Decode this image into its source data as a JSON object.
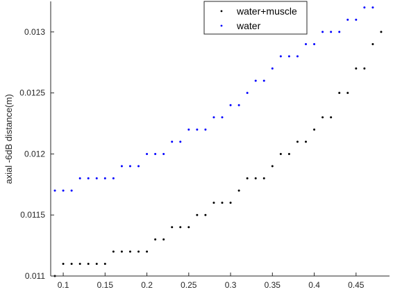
{
  "chart_data": {
    "type": "scatter",
    "title": "",
    "xlabel": "",
    "ylabel": "axial -6dB distance(m)",
    "xlim": [
      0.085,
      0.49
    ],
    "ylim": [
      0.011,
      0.01325
    ],
    "grid": false,
    "legend_position": "top-right",
    "xticks": [
      0.1,
      0.15,
      0.2,
      0.25,
      0.3,
      0.35,
      0.4,
      0.45
    ],
    "xtick_labels": [
      "0.1",
      "0.15",
      "0.2",
      "0.25",
      "0.3",
      "0.35",
      "0.4",
      "0.45"
    ],
    "yticks": [
      0.011,
      0.0115,
      0.012,
      0.0125,
      0.013
    ],
    "ytick_labels": [
      "0.011",
      "0.0115",
      "0.012",
      "0.0125",
      "0.013"
    ],
    "x": [
      0.09,
      0.1,
      0.11,
      0.12,
      0.13,
      0.14,
      0.15,
      0.16,
      0.17,
      0.18,
      0.19,
      0.2,
      0.21,
      0.22,
      0.23,
      0.24,
      0.25,
      0.26,
      0.27,
      0.28,
      0.29,
      0.3,
      0.31,
      0.32,
      0.33,
      0.34,
      0.35,
      0.36,
      0.37,
      0.38,
      0.39,
      0.4,
      0.41,
      0.42,
      0.43,
      0.44,
      0.45,
      0.46,
      0.47,
      0.48
    ],
    "series": [
      {
        "name": "water+muscle",
        "color": "#000000",
        "values": [
          0.011,
          0.0111,
          0.0111,
          0.0111,
          0.0111,
          0.0111,
          0.0111,
          0.0112,
          0.0112,
          0.0112,
          0.0112,
          0.0112,
          0.0113,
          0.0113,
          0.0114,
          0.0114,
          0.0114,
          0.0115,
          0.0115,
          0.0116,
          0.0116,
          0.0116,
          0.0117,
          0.0118,
          0.0118,
          0.0118,
          0.0119,
          0.012,
          0.012,
          0.0121,
          0.0121,
          0.0122,
          0.0123,
          0.0123,
          0.0125,
          0.0125,
          0.0127,
          0.0127,
          0.0129,
          0.013
        ]
      },
      {
        "name": "water",
        "color": "#0000ff",
        "values": [
          0.0117,
          0.0117,
          0.0117,
          0.0118,
          0.0118,
          0.0118,
          0.0118,
          0.0118,
          0.0119,
          0.0119,
          0.0119,
          0.012,
          0.012,
          0.012,
          0.0121,
          0.0121,
          0.0122,
          0.0122,
          0.0122,
          0.0123,
          0.0123,
          0.0124,
          0.0124,
          0.0125,
          0.0126,
          0.0126,
          0.0127,
          0.0128,
          0.0128,
          0.0128,
          0.0129,
          0.0129,
          0.013,
          0.013,
          0.013,
          0.0131,
          0.0131,
          0.0132,
          0.0132,
          null
        ]
      }
    ]
  }
}
